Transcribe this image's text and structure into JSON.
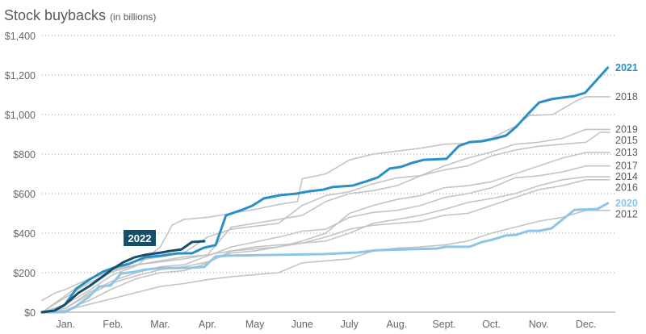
{
  "chart_data": {
    "type": "line",
    "title": "Stock buybacks",
    "subtitle": "(in billions)",
    "xlabel": "",
    "ylabel": "",
    "x_unit": "months elapsed since Jan. 1",
    "xlim": [
      0,
      12
    ],
    "ylim": [
      0,
      1400
    ],
    "yticks": [
      0,
      200,
      400,
      600,
      800,
      1000,
      1200,
      1400
    ],
    "ytick_labels": [
      "$0",
      "$200",
      "$400",
      "$600",
      "$800",
      "$1,000",
      "$1,200",
      "$1,400"
    ],
    "xtick_labels": [
      "Jan.",
      "Feb.",
      "Mar.",
      "Apr.",
      "May",
      "June",
      "July",
      "Aug.",
      "Sept.",
      "Oct.",
      "Nov.",
      "Dec."
    ],
    "grid": "horizontal dotted",
    "callout_label": "2022",
    "colors": {
      "highlight_2021": "#2a8fc4",
      "highlight_2020": "#8ec5e6",
      "current_2022": "#174f6b",
      "other_years": "#c4c4c4",
      "callout_bg": "#174f6b"
    },
    "series": [
      {
        "name": "2012",
        "style": "other",
        "points": [
          [
            0,
            0
          ],
          [
            0.5,
            10
          ],
          [
            1,
            40
          ],
          [
            1.5,
            70
          ],
          [
            2,
            100
          ],
          [
            2.5,
            130
          ],
          [
            3,
            145
          ],
          [
            3.5,
            165
          ],
          [
            4,
            180
          ],
          [
            4.5,
            190
          ],
          [
            5,
            200
          ],
          [
            5.5,
            250
          ],
          [
            6,
            260
          ],
          [
            6.5,
            270
          ],
          [
            7,
            310
          ],
          [
            7.5,
            325
          ],
          [
            8,
            330
          ],
          [
            8.5,
            340
          ],
          [
            9,
            360
          ],
          [
            9.5,
            400
          ],
          [
            10,
            430
          ],
          [
            10.5,
            460
          ],
          [
            11,
            480
          ],
          [
            11.5,
            515
          ],
          [
            12,
            515
          ]
        ]
      },
      {
        "name": "2016",
        "style": "other",
        "points": [
          [
            0,
            0
          ],
          [
            0.5,
            10
          ],
          [
            1,
            60
          ],
          [
            1.5,
            120
          ],
          [
            2,
            170
          ],
          [
            2.5,
            200
          ],
          [
            3,
            210
          ],
          [
            3.5,
            250
          ],
          [
            4,
            310
          ],
          [
            4.5,
            330
          ],
          [
            5,
            340
          ],
          [
            5.5,
            350
          ],
          [
            6,
            380
          ],
          [
            6.5,
            420
          ],
          [
            7,
            440
          ],
          [
            7.5,
            450
          ],
          [
            8,
            460
          ],
          [
            8.5,
            490
          ],
          [
            9,
            500
          ],
          [
            9.5,
            540
          ],
          [
            10,
            580
          ],
          [
            10.5,
            620
          ],
          [
            11,
            640
          ],
          [
            11.5,
            670
          ],
          [
            12,
            670
          ]
        ]
      },
      {
        "name": "2014",
        "style": "other",
        "points": [
          [
            0,
            0
          ],
          [
            0.5,
            20
          ],
          [
            1,
            90
          ],
          [
            1.5,
            150
          ],
          [
            2,
            185
          ],
          [
            2.5,
            215
          ],
          [
            3,
            230
          ],
          [
            3.5,
            255
          ],
          [
            4,
            300
          ],
          [
            4.5,
            310
          ],
          [
            5,
            330
          ],
          [
            5.5,
            350
          ],
          [
            6,
            360
          ],
          [
            6.5,
            400
          ],
          [
            7,
            450
          ],
          [
            7.5,
            470
          ],
          [
            8,
            490
          ],
          [
            8.5,
            520
          ],
          [
            9,
            555
          ],
          [
            9.5,
            575
          ],
          [
            10,
            600
          ],
          [
            10.5,
            640
          ],
          [
            11,
            670
          ],
          [
            11.5,
            685
          ],
          [
            12,
            685
          ]
        ]
      },
      {
        "name": "2017",
        "style": "other",
        "points": [
          [
            0,
            0
          ],
          [
            0.5,
            20
          ],
          [
            1,
            100
          ],
          [
            1.5,
            160
          ],
          [
            2,
            200
          ],
          [
            2.5,
            230
          ],
          [
            3,
            240
          ],
          [
            3.5,
            285
          ],
          [
            4,
            330
          ],
          [
            4.5,
            355
          ],
          [
            5,
            380
          ],
          [
            5.5,
            410
          ],
          [
            6,
            420
          ],
          [
            6.5,
            480
          ],
          [
            7,
            505
          ],
          [
            7.5,
            515
          ],
          [
            8,
            540
          ],
          [
            8.5,
            580
          ],
          [
            9,
            600
          ],
          [
            9.5,
            630
          ],
          [
            10,
            680
          ],
          [
            10.5,
            690
          ],
          [
            11,
            710
          ],
          [
            11.5,
            740
          ],
          [
            12,
            740
          ]
        ]
      },
      {
        "name": "2013",
        "style": "other",
        "points": [
          [
            0,
            60
          ],
          [
            0.3,
            100
          ],
          [
            0.5,
            115
          ],
          [
            1,
            170
          ],
          [
            1.5,
            215
          ],
          [
            2,
            240
          ],
          [
            2.5,
            260
          ],
          [
            3,
            280
          ],
          [
            3.5,
            290
          ],
          [
            4,
            310
          ],
          [
            4.5,
            320
          ],
          [
            5,
            330
          ],
          [
            5.5,
            360
          ],
          [
            6,
            400
          ],
          [
            6.5,
            500
          ],
          [
            7,
            540
          ],
          [
            7.5,
            570
          ],
          [
            8,
            590
          ],
          [
            8.5,
            630
          ],
          [
            9,
            640
          ],
          [
            9.5,
            660
          ],
          [
            10,
            700
          ],
          [
            10.5,
            740
          ],
          [
            11,
            780
          ],
          [
            11.5,
            808
          ],
          [
            12,
            808
          ]
        ]
      },
      {
        "name": "2015",
        "style": "other",
        "points": [
          [
            0,
            0
          ],
          [
            1,
            170
          ],
          [
            2,
            240
          ],
          [
            3,
            270
          ],
          [
            3.5,
            290
          ],
          [
            4,
            430
          ],
          [
            4.5,
            450
          ],
          [
            5,
            470
          ],
          [
            5.5,
            490
          ],
          [
            6,
            560
          ],
          [
            6.5,
            600
          ],
          [
            7,
            615
          ],
          [
            7.5,
            640
          ],
          [
            8,
            690
          ],
          [
            8.5,
            720
          ],
          [
            9,
            740
          ],
          [
            9.5,
            790
          ],
          [
            10,
            820
          ],
          [
            10.5,
            840
          ],
          [
            11,
            850
          ],
          [
            11.5,
            860
          ],
          [
            11.8,
            910
          ],
          [
            12,
            910
          ]
        ]
      },
      {
        "name": "2019",
        "style": "other",
        "points": [
          [
            0,
            0
          ],
          [
            1,
            150
          ],
          [
            2,
            260
          ],
          [
            3,
            300
          ],
          [
            3.5,
            380
          ],
          [
            4,
            420
          ],
          [
            5,
            450
          ],
          [
            5.5,
            540
          ],
          [
            6,
            590
          ],
          [
            6.5,
            610
          ],
          [
            7,
            650
          ],
          [
            7.5,
            680
          ],
          [
            8,
            690
          ],
          [
            8.5,
            740
          ],
          [
            9,
            780
          ],
          [
            9.5,
            810
          ],
          [
            10,
            850
          ],
          [
            10.5,
            860
          ],
          [
            11,
            880
          ],
          [
            11.5,
            925
          ],
          [
            12,
            925
          ]
        ]
      },
      {
        "name": "2018",
        "style": "other",
        "points": [
          [
            0,
            0
          ],
          [
            0.5,
            40
          ],
          [
            1,
            110
          ],
          [
            1.5,
            190
          ],
          [
            2,
            235
          ],
          [
            2.5,
            330
          ],
          [
            2.75,
            440
          ],
          [
            3,
            470
          ],
          [
            3.5,
            480
          ],
          [
            4,
            500
          ],
          [
            4.5,
            520
          ],
          [
            5,
            545
          ],
          [
            5.4,
            560
          ],
          [
            5.5,
            675
          ],
          [
            6,
            700
          ],
          [
            6.5,
            770
          ],
          [
            7,
            800
          ],
          [
            7.5,
            815
          ],
          [
            8,
            830
          ],
          [
            8.5,
            850
          ],
          [
            9,
            855
          ],
          [
            9.5,
            880
          ],
          [
            10,
            940
          ],
          [
            10.3,
            995
          ],
          [
            10.8,
            1000
          ],
          [
            11.3,
            1070
          ],
          [
            11.5,
            1090
          ],
          [
            12,
            1090
          ]
        ]
      },
      {
        "name": "2020",
        "style": "h2020",
        "points": [
          [
            0,
            0
          ],
          [
            0.48,
            0
          ],
          [
            0.7,
            27
          ],
          [
            0.99,
            78
          ],
          [
            1.21,
            130
          ],
          [
            1.45,
            135
          ],
          [
            1.67,
            196
          ],
          [
            1.96,
            204
          ],
          [
            2.18,
            216
          ],
          [
            2.53,
            224
          ],
          [
            3.09,
            224
          ],
          [
            3.43,
            229
          ],
          [
            3.67,
            282
          ],
          [
            3.94,
            286
          ],
          [
            5.94,
            294
          ],
          [
            6.67,
            302
          ],
          [
            7.08,
            314
          ],
          [
            8.33,
            322
          ],
          [
            8.55,
            331
          ],
          [
            9.04,
            331
          ],
          [
            9.3,
            355
          ],
          [
            9.52,
            367
          ],
          [
            9.81,
            388
          ],
          [
            10.03,
            392
          ],
          [
            10.29,
            412
          ],
          [
            10.51,
            412
          ],
          [
            10.77,
            424
          ],
          [
            11.26,
            518
          ],
          [
            11.74,
            522
          ],
          [
            11.96,
            551
          ]
        ]
      },
      {
        "name": "2021",
        "style": "h2021",
        "points": [
          [
            0,
            0
          ],
          [
            0.27,
            8
          ],
          [
            0.48,
            37
          ],
          [
            0.73,
            120
          ],
          [
            0.99,
            163
          ],
          [
            1.28,
            204
          ],
          [
            1.5,
            224
          ],
          [
            1.84,
            245
          ],
          [
            2.18,
            278
          ],
          [
            2.53,
            286
          ],
          [
            2.87,
            298
          ],
          [
            3.17,
            298
          ],
          [
            3.43,
            327
          ],
          [
            3.67,
            339
          ],
          [
            3.89,
            490
          ],
          [
            4.23,
            518
          ],
          [
            4.45,
            539
          ],
          [
            4.69,
            576
          ],
          [
            5.03,
            592
          ],
          [
            5.38,
            600
          ],
          [
            5.65,
            612
          ],
          [
            5.94,
            620
          ],
          [
            6.14,
            633
          ],
          [
            6.57,
            641
          ],
          [
            6.84,
            661
          ],
          [
            7.1,
            682
          ],
          [
            7.35,
            727
          ],
          [
            7.59,
            735
          ],
          [
            7.82,
            755
          ],
          [
            8.07,
            771
          ],
          [
            8.55,
            776
          ],
          [
            8.81,
            841
          ],
          [
            9.04,
            861
          ],
          [
            9.3,
            865
          ],
          [
            9.56,
            878
          ],
          [
            9.81,
            894
          ],
          [
            10.03,
            939
          ],
          [
            10.26,
            1000
          ],
          [
            10.51,
            1061
          ],
          [
            10.77,
            1078
          ],
          [
            11.01,
            1086
          ],
          [
            11.26,
            1094
          ],
          [
            11.48,
            1110
          ],
          [
            11.96,
            1237
          ]
        ]
      },
      {
        "name": "2022",
        "style": "current",
        "points": [
          [
            0,
            0
          ],
          [
            0.26,
            8
          ],
          [
            0.48,
            37
          ],
          [
            0.77,
            98
          ],
          [
            0.99,
            130
          ],
          [
            1.28,
            180
          ],
          [
            1.5,
            220
          ],
          [
            1.72,
            253
          ],
          [
            1.96,
            278
          ],
          [
            2.18,
            290
          ],
          [
            2.53,
            302
          ],
          [
            2.7,
            310
          ],
          [
            2.95,
            318
          ],
          [
            3.17,
            355
          ],
          [
            3.43,
            359
          ]
        ]
      }
    ]
  }
}
